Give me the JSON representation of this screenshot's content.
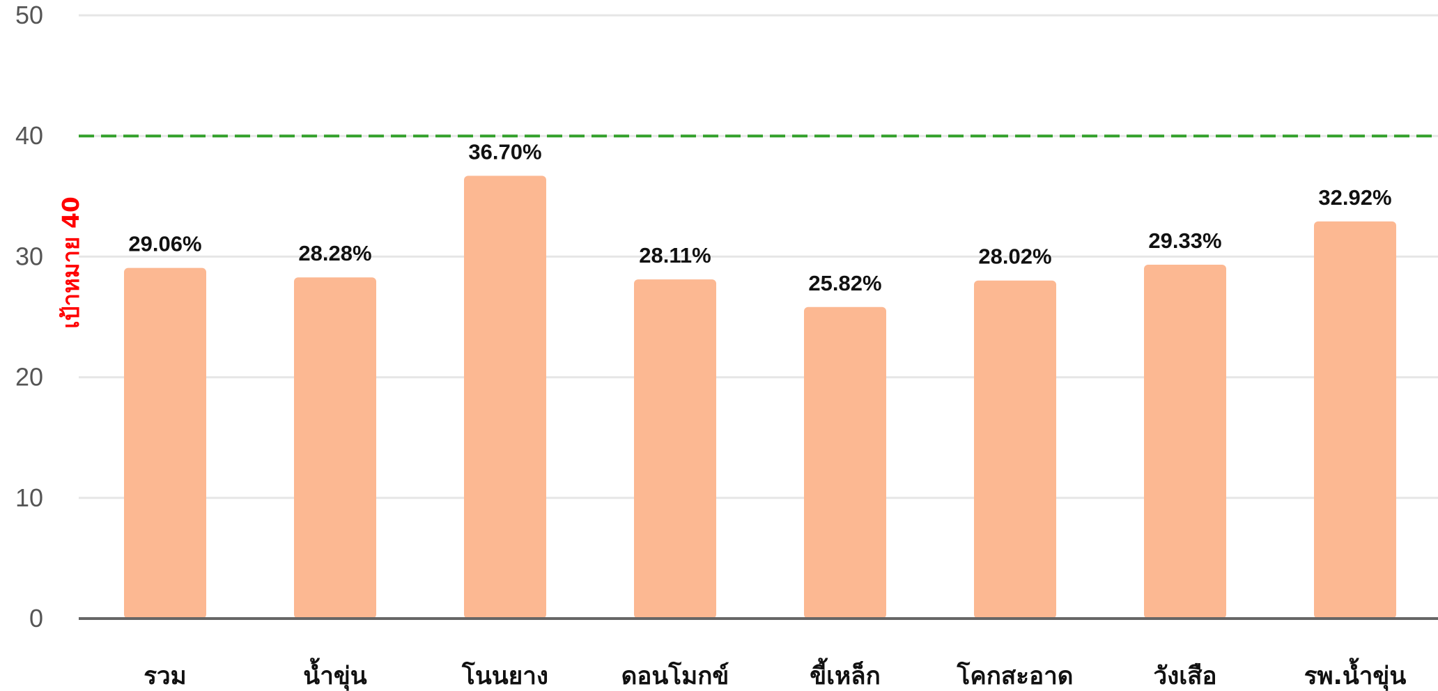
{
  "chart_data": {
    "type": "bar",
    "categories": [
      "รวม",
      "น้ำขุ่น",
      "โนนยาง",
      "ดอนโมกข์",
      "ขี้เหล็ก",
      "โคกสะอาด",
      "วังเสือ",
      "รพ.น้ำขุ่น"
    ],
    "values": [
      29.06,
      28.28,
      36.7,
      28.11,
      25.82,
      28.02,
      29.33,
      32.92
    ],
    "data_labels": [
      "29.06%",
      "28.28%",
      "36.70%",
      "28.11%",
      "25.82%",
      "28.02%",
      "29.33%",
      "32.92%"
    ],
    "ylim": [
      0,
      50
    ],
    "yticks": [
      0,
      10,
      20,
      30,
      40,
      50
    ],
    "target": {
      "value": 40,
      "label": "เป้าหมาย 40"
    },
    "grid": true,
    "legend": "none",
    "colors": {
      "bar": "#fcb892",
      "target_line": "#33a02c",
      "target_label": "#ff0000",
      "grid": "#e6e6e6",
      "axis": "#666666"
    }
  }
}
